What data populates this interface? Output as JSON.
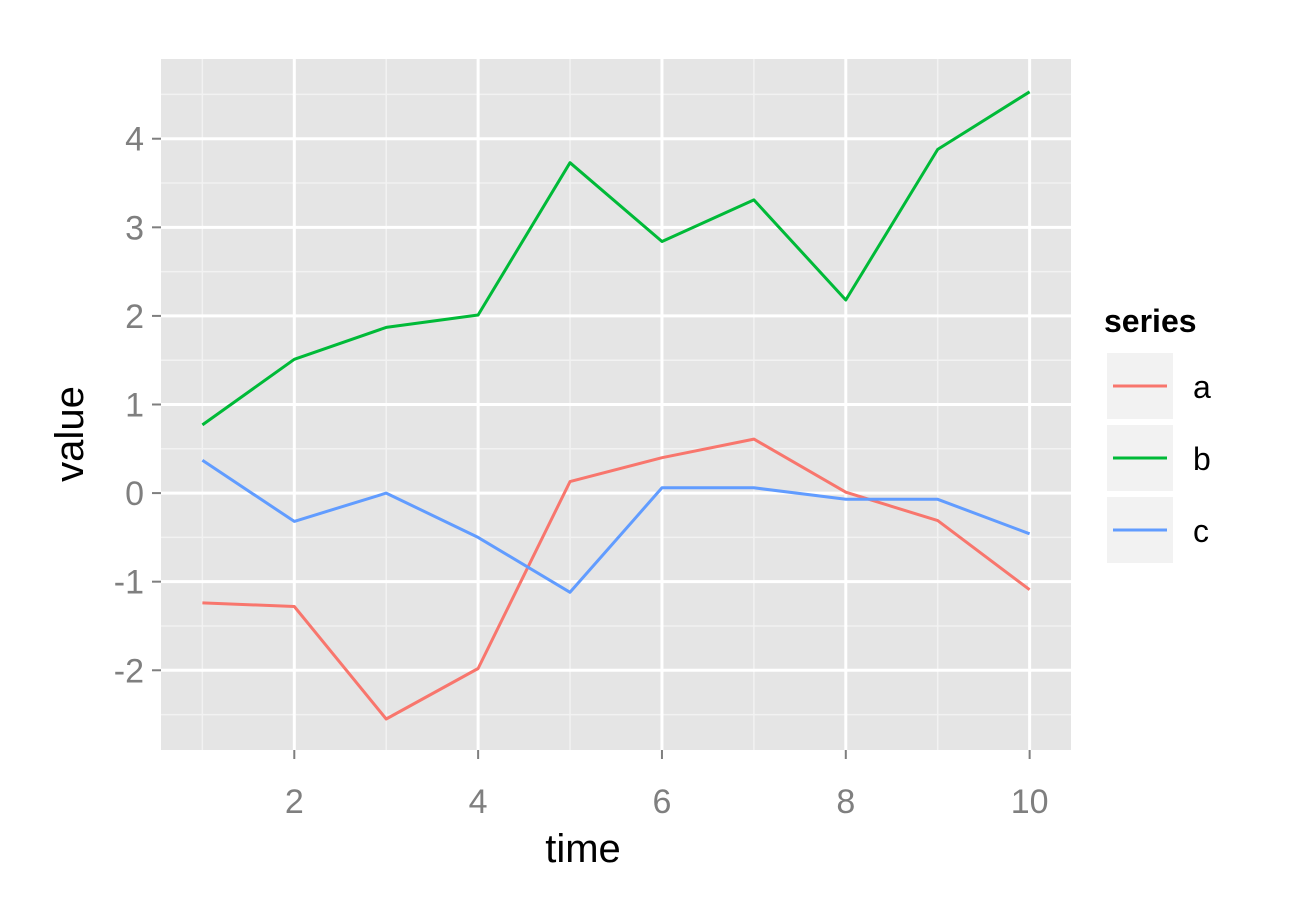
{
  "chart_data": {
    "type": "line",
    "xlabel": "time",
    "ylabel": "value",
    "x": [
      1,
      2,
      3,
      4,
      5,
      6,
      7,
      8,
      9,
      10
    ],
    "xlim": [
      0.55,
      10.45
    ],
    "ylim": [
      -2.9,
      4.9
    ],
    "x_ticks": [
      2,
      4,
      6,
      8,
      10
    ],
    "x_tick_labels": [
      "2",
      "4",
      "6",
      "8",
      "10"
    ],
    "x_minor_ticks": [
      1,
      3,
      5,
      7,
      9
    ],
    "y_ticks": [
      -2,
      -1,
      0,
      1,
      2,
      3,
      4
    ],
    "y_tick_labels": [
      "-2",
      "-1",
      "0",
      "1",
      "2",
      "3",
      "4"
    ],
    "grid": true,
    "legend": {
      "title": "series",
      "position": "right"
    },
    "series": [
      {
        "name": "a",
        "color": "#F8766D",
        "values": [
          -1.24,
          -1.28,
          -2.55,
          -1.98,
          0.13,
          0.4,
          0.61,
          0.01,
          -0.31,
          -1.09
        ]
      },
      {
        "name": "b",
        "color": "#00BA38",
        "values": [
          0.77,
          1.51,
          1.87,
          2.01,
          3.73,
          2.84,
          3.31,
          2.18,
          3.88,
          4.53
        ]
      },
      {
        "name": "c",
        "color": "#619CFF",
        "values": [
          0.37,
          -0.32,
          0.0,
          -0.5,
          -1.12,
          0.06,
          0.06,
          -0.07,
          -0.07,
          -0.46
        ]
      }
    ]
  }
}
